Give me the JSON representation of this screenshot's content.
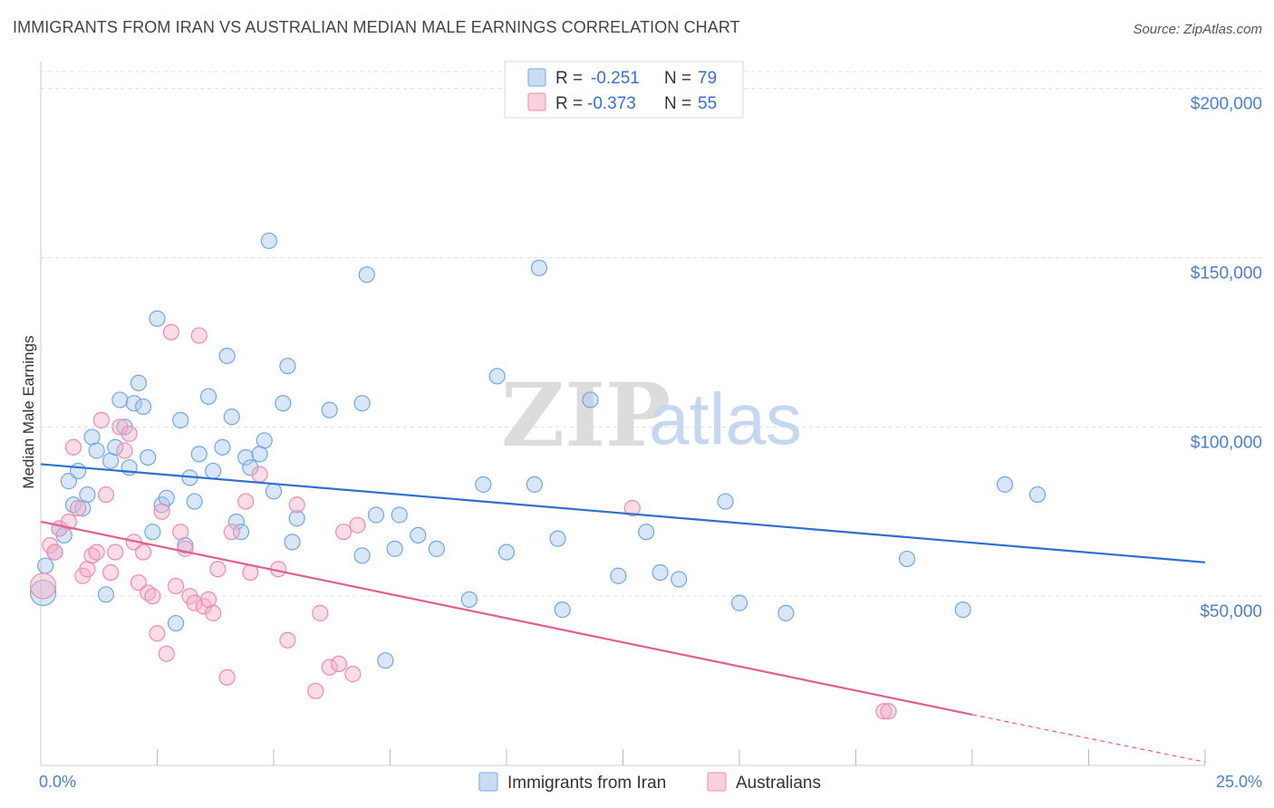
{
  "title": "IMMIGRANTS FROM IRAN VS AUSTRALIAN MEDIAN MALE EARNINGS CORRELATION CHART",
  "source": "Source: ZipAtlas.com",
  "watermark": {
    "zip": "ZIP",
    "atlas": "atlas"
  },
  "legend_top": [
    {
      "r_label": "R =",
      "r_value": "-0.251",
      "n_label": "N =",
      "n_value": "79",
      "color": "#6fa8e8"
    },
    {
      "r_label": "R =",
      "r_value": "-0.373",
      "n_label": "N =",
      "n_value": "55",
      "color": "#f08cad"
    }
  ],
  "legend_bottom": [
    {
      "label": "Immigrants from Iran",
      "color": "#6fa8e8"
    },
    {
      "label": "Australians",
      "color": "#f08cad"
    }
  ],
  "chart_data": {
    "type": "scatter",
    "title": "IMMIGRANTS FROM IRAN VS AUSTRALIAN MEDIAN MALE EARNINGS CORRELATION CHART",
    "ylabel": "Median Male Earnings",
    "xlabel": "",
    "x_tick_labels": [
      "0.0%",
      "25.0%"
    ],
    "y_tick_labels": [
      "$50,000",
      "$100,000",
      "$150,000",
      "$200,000"
    ],
    "y_ticks": [
      50000,
      100000,
      150000,
      200000
    ],
    "xlim": [
      0,
      25
    ],
    "ylim": [
      0,
      205000
    ],
    "grid": true,
    "series": [
      {
        "name": "Immigrants from Iran",
        "color": "#6fa8e8",
        "line_color": "#2e6fd0",
        "trend": {
          "x": [
            0,
            25
          ],
          "y": [
            89000,
            60000
          ]
        },
        "points": [
          [
            0.05,
            51000
          ],
          [
            0.1,
            59000
          ],
          [
            0.3,
            63000
          ],
          [
            0.4,
            70000
          ],
          [
            0.5,
            68000
          ],
          [
            0.6,
            84000
          ],
          [
            0.7,
            77000
          ],
          [
            0.8,
            87000
          ],
          [
            0.9,
            76000
          ],
          [
            1.0,
            80000
          ],
          [
            1.1,
            97000
          ],
          [
            1.2,
            93000
          ],
          [
            1.4,
            50500
          ],
          [
            1.5,
            90000
          ],
          [
            1.6,
            94000
          ],
          [
            1.7,
            108000
          ],
          [
            1.8,
            100000
          ],
          [
            1.9,
            88000
          ],
          [
            2.0,
            107000
          ],
          [
            2.1,
            113000
          ],
          [
            2.2,
            106000
          ],
          [
            2.3,
            91000
          ],
          [
            2.4,
            69000
          ],
          [
            2.5,
            132000
          ],
          [
            2.6,
            77000
          ],
          [
            2.7,
            79000
          ],
          [
            2.9,
            42000
          ],
          [
            3.0,
            102000
          ],
          [
            3.1,
            65000
          ],
          [
            3.2,
            85000
          ],
          [
            3.3,
            78000
          ],
          [
            3.4,
            92000
          ],
          [
            3.6,
            109000
          ],
          [
            3.7,
            87000
          ],
          [
            3.9,
            94000
          ],
          [
            4.0,
            121000
          ],
          [
            4.1,
            103000
          ],
          [
            4.2,
            72000
          ],
          [
            4.3,
            69000
          ],
          [
            4.4,
            91000
          ],
          [
            4.5,
            88000
          ],
          [
            4.7,
            92000
          ],
          [
            4.8,
            96000
          ],
          [
            4.9,
            155000
          ],
          [
            5.0,
            81000
          ],
          [
            5.2,
            107000
          ],
          [
            5.3,
            118000
          ],
          [
            5.4,
            66000
          ],
          [
            5.5,
            73000
          ],
          [
            6.2,
            105000
          ],
          [
            6.9,
            62000
          ],
          [
            6.9,
            107000
          ],
          [
            7.0,
            145000
          ],
          [
            7.2,
            74000
          ],
          [
            7.4,
            31000
          ],
          [
            7.6,
            64000
          ],
          [
            7.7,
            74000
          ],
          [
            8.1,
            68000
          ],
          [
            8.5,
            64000
          ],
          [
            9.2,
            49000
          ],
          [
            9.5,
            83000
          ],
          [
            9.8,
            115000
          ],
          [
            10.0,
            63000
          ],
          [
            10.6,
            83000
          ],
          [
            10.7,
            147000
          ],
          [
            11.1,
            67000
          ],
          [
            11.2,
            46000
          ],
          [
            11.8,
            108000
          ],
          [
            12.4,
            56000
          ],
          [
            13.0,
            69000
          ],
          [
            13.3,
            57000
          ],
          [
            13.7,
            55000
          ],
          [
            14.7,
            78000
          ],
          [
            15.0,
            48000
          ],
          [
            16.0,
            45000
          ],
          [
            18.6,
            61000
          ],
          [
            19.8,
            46000
          ],
          [
            20.7,
            83000
          ],
          [
            21.4,
            80000
          ]
        ]
      },
      {
        "name": "Australians",
        "color": "#f08cad",
        "line_color": "#e0608a",
        "trend": {
          "x": [
            0,
            20
          ],
          "y": [
            72000,
            15000
          ]
        },
        "trend_dashed": {
          "x": [
            20,
            25
          ],
          "y": [
            15000,
            1000
          ]
        },
        "points": [
          [
            0.05,
            53000
          ],
          [
            0.2,
            65000
          ],
          [
            0.3,
            63000
          ],
          [
            0.4,
            70000
          ],
          [
            0.6,
            72000
          ],
          [
            0.7,
            94000
          ],
          [
            0.8,
            76000
          ],
          [
            0.9,
            56000
          ],
          [
            1.0,
            58000
          ],
          [
            1.1,
            62000
          ],
          [
            1.2,
            63000
          ],
          [
            1.3,
            102000
          ],
          [
            1.4,
            80000
          ],
          [
            1.5,
            57000
          ],
          [
            1.6,
            63000
          ],
          [
            1.7,
            100000
          ],
          [
            1.8,
            93000
          ],
          [
            1.9,
            98000
          ],
          [
            2.0,
            66000
          ],
          [
            2.1,
            54000
          ],
          [
            2.2,
            63000
          ],
          [
            2.3,
            51000
          ],
          [
            2.4,
            50000
          ],
          [
            2.5,
            39000
          ],
          [
            2.6,
            75000
          ],
          [
            2.7,
            33000
          ],
          [
            2.8,
            128000
          ],
          [
            2.9,
            53000
          ],
          [
            3.0,
            69000
          ],
          [
            3.1,
            64000
          ],
          [
            3.2,
            50000
          ],
          [
            3.3,
            48000
          ],
          [
            3.4,
            127000
          ],
          [
            3.5,
            47000
          ],
          [
            3.6,
            49000
          ],
          [
            3.7,
            45000
          ],
          [
            3.8,
            58000
          ],
          [
            4.0,
            26000
          ],
          [
            4.1,
            69000
          ],
          [
            4.4,
            78000
          ],
          [
            4.5,
            57000
          ],
          [
            4.7,
            86000
          ],
          [
            5.1,
            58000
          ],
          [
            5.3,
            37000
          ],
          [
            5.5,
            77000
          ],
          [
            5.9,
            22000
          ],
          [
            6.0,
            45000
          ],
          [
            6.2,
            29000
          ],
          [
            6.4,
            30000
          ],
          [
            6.5,
            69000
          ],
          [
            6.7,
            27000
          ],
          [
            6.8,
            71000
          ],
          [
            12.7,
            76000
          ],
          [
            18.1,
            16000
          ],
          [
            18.2,
            16000
          ]
        ]
      }
    ]
  }
}
